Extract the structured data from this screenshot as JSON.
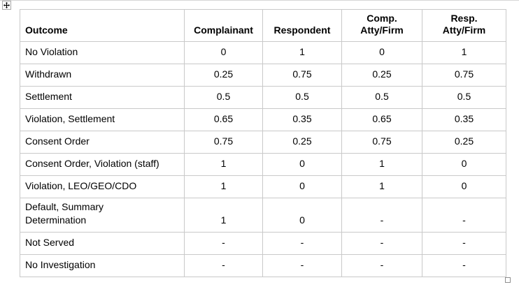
{
  "colors": {
    "table_border": "#c9c9c9",
    "text": "#000000",
    "top_edge_line": "#d6d6d6",
    "handle_border": "#8f8f8f"
  },
  "icons": {
    "move_icon": "four-direction-move-arrows",
    "resize_icon": "small-square-resize-handle"
  },
  "table": {
    "header": {
      "outcome": "Outcome",
      "complainant": "Complainant",
      "respondent": "Respondent",
      "comp_atty_firm": "Comp.\nAtty/Firm",
      "resp_atty_firm": "Resp.\nAtty/Firm"
    },
    "rows": [
      {
        "outcome": "No Violation",
        "values": [
          "0",
          "1",
          "0",
          "1"
        ]
      },
      {
        "outcome": "Withdrawn",
        "values": [
          "0.25",
          "0.75",
          "0.25",
          "0.75"
        ]
      },
      {
        "outcome": "Settlement",
        "values": [
          "0.5",
          "0.5",
          "0.5",
          "0.5"
        ]
      },
      {
        "outcome": "Violation, Settlement",
        "values": [
          "0.65",
          "0.35",
          "0.65",
          "0.35"
        ]
      },
      {
        "outcome": "Consent Order",
        "values": [
          "0.75",
          "0.25",
          "0.75",
          "0.25"
        ]
      },
      {
        "outcome": "Consent Order, Violation (staff)",
        "values": [
          "1",
          "0",
          "1",
          "0"
        ]
      },
      {
        "outcome": "Violation, LEO/GEO/CDO",
        "values": [
          "1",
          "0",
          "1",
          "0"
        ]
      },
      {
        "outcome": "Default, Summary\nDetermination",
        "values": [
          "1",
          "0",
          "-",
          "-"
        ]
      },
      {
        "outcome": "Not Served",
        "values": [
          "-",
          "-",
          "-",
          "-"
        ]
      },
      {
        "outcome": "No Investigation",
        "values": [
          "-",
          "-",
          "-",
          "-"
        ]
      }
    ]
  }
}
